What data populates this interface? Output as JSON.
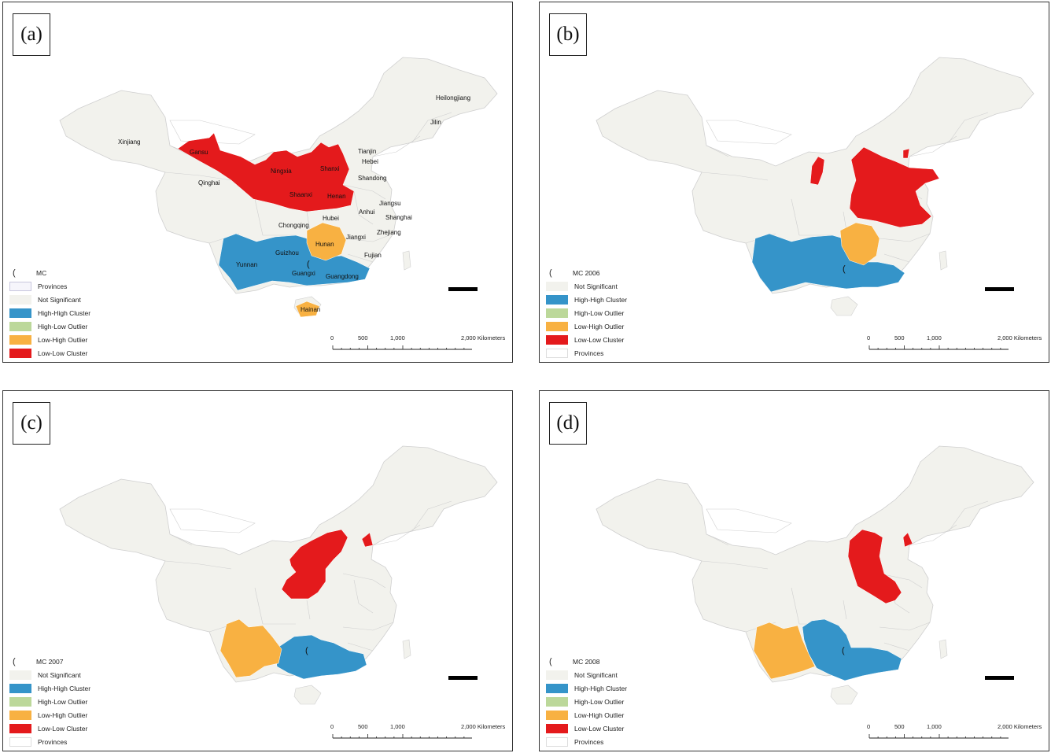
{
  "colors": {
    "not_significant": "#f2f2ed",
    "high_high": "#3594c9",
    "high_low": "#bcd89a",
    "low_high": "#f8b142",
    "low_low": "#e41a1c",
    "provinces": "#ffffff",
    "outline": "#cfcfcf"
  },
  "panels": [
    {
      "label": "(a)",
      "legend": {
        "title": "MC",
        "items": [
          {
            "label": "Provinces",
            "key": "provinces_a"
          },
          {
            "label": "Not Significant",
            "key": "not_significant"
          },
          {
            "label": "High-High Cluster",
            "key": "high_high"
          },
          {
            "label": "High-Low Outlier",
            "key": "high_low"
          },
          {
            "label": "Low-High Outlier",
            "key": "low_high"
          },
          {
            "label": "Low-Low Cluster",
            "key": "low_low"
          }
        ]
      },
      "clusters": {
        "low_low": "north_a",
        "high_high": "south_a",
        "low_high": "hunan_hainan"
      },
      "province_labels": [
        {
          "name": "Heilongjiang",
          "pos": [
            550,
            124
          ]
        },
        {
          "name": "Jilin",
          "pos": [
            543,
            155
          ]
        },
        {
          "name": "Xinjiang",
          "pos": [
            146,
            180
          ]
        },
        {
          "name": "Gansu",
          "pos": [
            237,
            193
          ]
        },
        {
          "name": "Tianjin",
          "pos": [
            451,
            192
          ]
        },
        {
          "name": "Hebei",
          "pos": [
            456,
            205
          ]
        },
        {
          "name": "Ningxia",
          "pos": [
            340,
            217
          ]
        },
        {
          "name": "Shanxi",
          "pos": [
            403,
            214
          ]
        },
        {
          "name": "Shandong",
          "pos": [
            451,
            226
          ]
        },
        {
          "name": "Qinghai",
          "pos": [
            248,
            232
          ]
        },
        {
          "name": "Shaanxi",
          "pos": [
            364,
            247
          ]
        },
        {
          "name": "Henan",
          "pos": [
            412,
            249
          ]
        },
        {
          "name": "Jiangsu",
          "pos": [
            478,
            258
          ]
        },
        {
          "name": "Anhui",
          "pos": [
            452,
            269
          ]
        },
        {
          "name": "Shanghai",
          "pos": [
            486,
            276
          ]
        },
        {
          "name": "Hubei",
          "pos": [
            406,
            277
          ]
        },
        {
          "name": "Chongqing",
          "pos": [
            350,
            286
          ]
        },
        {
          "name": "Zhejiang",
          "pos": [
            475,
            295
          ]
        },
        {
          "name": "Jiangxi",
          "pos": [
            436,
            301
          ]
        },
        {
          "name": "Hunan",
          "pos": [
            397,
            310
          ]
        },
        {
          "name": "Guizhou",
          "pos": [
            346,
            321
          ]
        },
        {
          "name": "Fujian",
          "pos": [
            459,
            324
          ]
        },
        {
          "name": "Yunnan",
          "pos": [
            296,
            336
          ]
        },
        {
          "name": "Guangxi",
          "pos": [
            367,
            347
          ]
        },
        {
          "name": "Guangdong",
          "pos": [
            410,
            351
          ]
        },
        {
          "name": "Hainan",
          "pos": [
            378,
            393
          ]
        }
      ]
    },
    {
      "label": "(b)",
      "legend": {
        "title": "MC 2006",
        "items": [
          {
            "label": "Not Significant",
            "key": "not_significant"
          },
          {
            "label": "High-High Cluster",
            "key": "high_high"
          },
          {
            "label": "High-Low Outlier",
            "key": "high_low"
          },
          {
            "label": "Low-High Outlier",
            "key": "low_high"
          },
          {
            "label": "Low-Low Cluster",
            "key": "low_low"
          },
          {
            "label": "Provinces",
            "key": "provinces"
          }
        ]
      },
      "clusters": {
        "low_low": "north_b",
        "high_high": "south_b",
        "low_high": "hunan_b"
      },
      "province_labels": []
    },
    {
      "label": "(c)",
      "legend": {
        "title": "MC 2007",
        "items": [
          {
            "label": "Not Significant",
            "key": "not_significant"
          },
          {
            "label": "High-High Cluster",
            "key": "high_high"
          },
          {
            "label": "High-Low Outlier",
            "key": "high_low"
          },
          {
            "label": "Low-High Outlier",
            "key": "low_high"
          },
          {
            "label": "Low-Low Cluster",
            "key": "low_low"
          },
          {
            "label": "Provinces",
            "key": "provinces"
          }
        ]
      },
      "clusters": {
        "low_low": "north_c",
        "high_high": "south_c",
        "low_high": "yunnan_c"
      },
      "province_labels": []
    },
    {
      "label": "(d)",
      "legend": {
        "title": "MC 2008",
        "items": [
          {
            "label": "Not Significant",
            "key": "not_significant"
          },
          {
            "label": "High-High Cluster",
            "key": "high_high"
          },
          {
            "label": "High-Low Outlier",
            "key": "high_low"
          },
          {
            "label": "Low-High Outlier",
            "key": "low_high"
          },
          {
            "label": "Low-Low Cluster",
            "key": "low_low"
          },
          {
            "label": "Provinces",
            "key": "provinces"
          }
        ]
      },
      "clusters": {
        "low_low": "north_d",
        "high_high": "south_d",
        "low_high": "yunnan_d"
      },
      "province_labels": []
    }
  ],
  "scale_bar": {
    "ticks": [
      "0",
      "500",
      "1,000",
      "2,000 Kilometers"
    ]
  },
  "symbol": "("
}
